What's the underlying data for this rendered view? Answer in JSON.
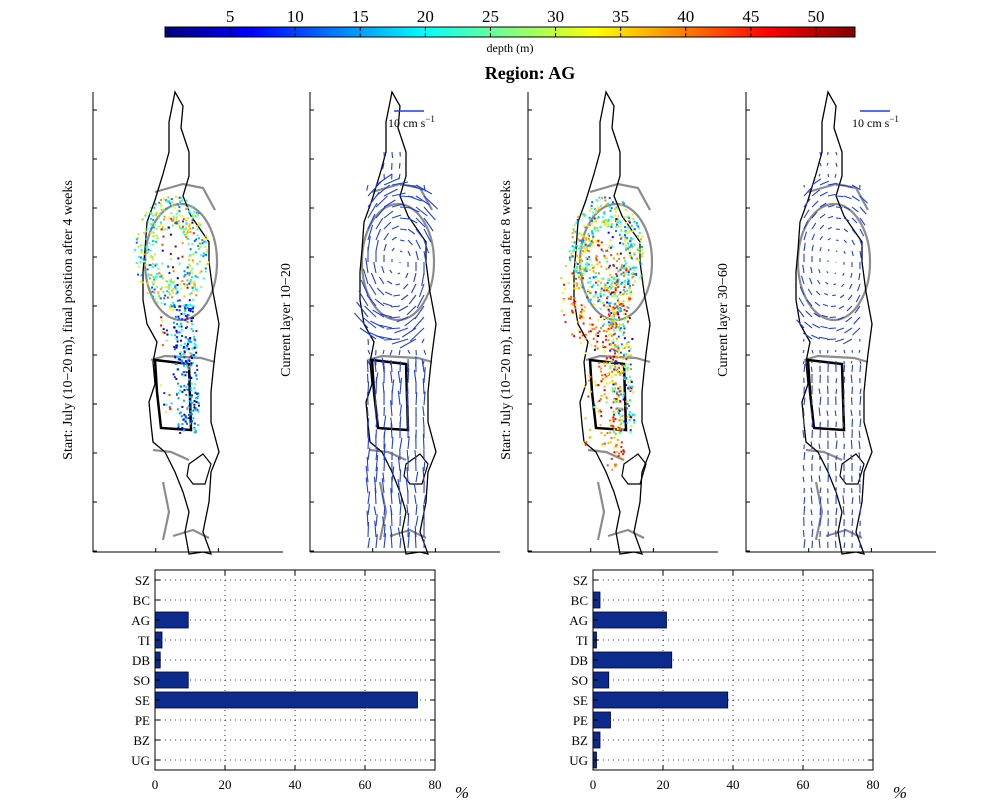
{
  "colorbar": {
    "ticks": [
      5,
      10,
      15,
      20,
      25,
      30,
      35,
      40,
      45,
      50
    ],
    "min": 0,
    "max": 53,
    "label": "depth (m)",
    "colormap": [
      "#00007f",
      "#0000ff",
      "#007fff",
      "#00ffff",
      "#7fff7f",
      "#ffff00",
      "#ff7f00",
      "#ff0000",
      "#7f0000"
    ]
  },
  "title": "Region: AG",
  "panels": {
    "p1": {
      "ylabel": "Start: July (10−20 m), final position after 4 weeks"
    },
    "p2": {
      "ylabel": "Current layer 10−20",
      "scale_label": "10 cm s",
      "scale_exp": "−1"
    },
    "p3": {
      "ylabel": "Start: July (10−20 m), final position after 8 weeks"
    },
    "p4": {
      "ylabel": "Current layer 30−60",
      "scale_label": "10 cm s",
      "scale_exp": "−1"
    }
  },
  "colors": {
    "bar": "#0c2b8c",
    "bar_edge": "#000033",
    "coast": "#000000",
    "boxes": "#8c8c8c",
    "arrows": "#1f3fe0"
  },
  "chart_data": [
    {
      "type": "bar",
      "orientation": "horizontal",
      "categories": [
        "SZ",
        "BC",
        "AG",
        "TI",
        "DB",
        "SO",
        "SE",
        "PE",
        "BZ",
        "UG"
      ],
      "values": [
        0,
        0,
        9.5,
        2,
        1.5,
        9.5,
        75,
        0,
        0,
        0
      ],
      "xlim": [
        0,
        80
      ],
      "xticks": [
        0,
        20,
        40,
        60,
        80
      ],
      "xlabel": "%",
      "grid": true
    },
    {
      "type": "bar",
      "orientation": "horizontal",
      "categories": [
        "SZ",
        "BC",
        "AG",
        "TI",
        "DB",
        "SO",
        "SE",
        "PE",
        "BZ",
        "UG"
      ],
      "values": [
        0,
        2,
        21,
        1,
        22.5,
        4.5,
        38.5,
        5,
        2,
        1
      ],
      "xlim": [
        0,
        80
      ],
      "xticks": [
        0,
        20,
        40,
        60,
        80
      ],
      "xlabel": "%",
      "grid": true
    }
  ]
}
